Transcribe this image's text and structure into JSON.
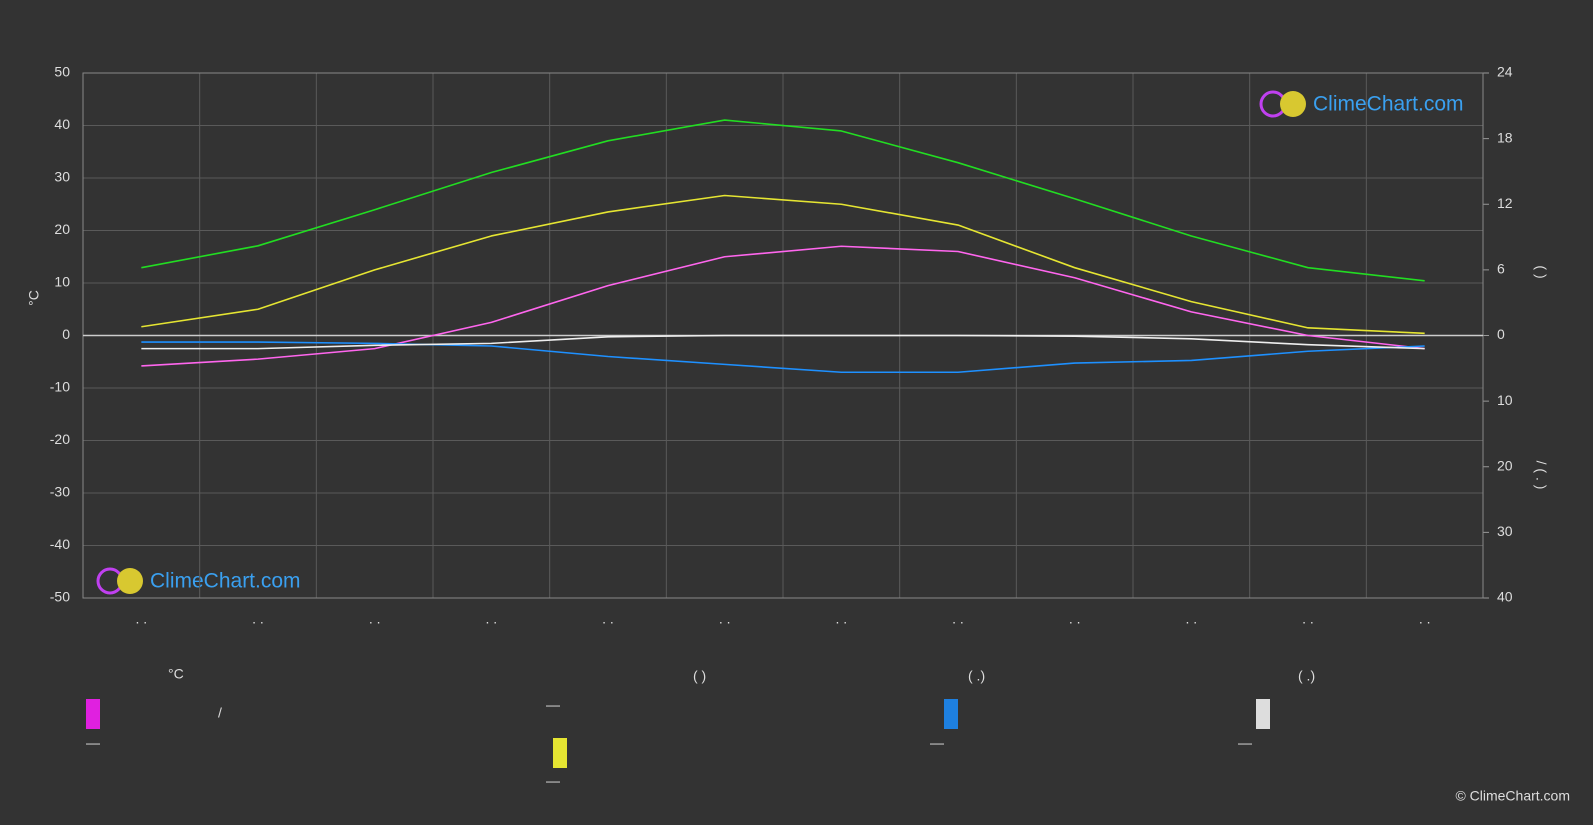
{
  "chart_data": {
    "type": "line",
    "categories": [
      ". .",
      ". .",
      ". .",
      ". .",
      ". .",
      ". .",
      ". .",
      ". .",
      ". .",
      ". .",
      ". .",
      ". ."
    ],
    "ylabel": "°C",
    "y2label": "(     )",
    "y3label": "/   (  .  )",
    "ylim": [
      -50,
      50
    ],
    "yticks": [
      -50,
      -40,
      -30,
      -20,
      -10,
      0,
      10,
      20,
      30,
      40,
      50
    ],
    "y2lim": [
      0,
      24
    ],
    "y2ticks": [
      0,
      6,
      12,
      18,
      24
    ],
    "y3lim": [
      0,
      40
    ],
    "y3ticks": [
      10,
      20,
      30,
      40
    ],
    "grid": true,
    "series": [
      {
        "name": "—",
        "color": "#22dd22",
        "axis": "y2",
        "values": [
          6.2,
          8.2,
          11.5,
          14.9,
          17.8,
          19.7,
          18.7,
          15.8,
          12.5,
          9.1,
          6.2,
          5.0
        ]
      },
      {
        "name": "—",
        "color": "#e5e532",
        "axis": "y2",
        "values": [
          0.8,
          2.4,
          6.0,
          9.1,
          11.3,
          12.8,
          12.0,
          10.1,
          6.2,
          3.1,
          0.7,
          0.2
        ]
      },
      {
        "name": "—",
        "color": "#ff66ee",
        "axis": "y",
        "values": [
          -5.8,
          -4.5,
          -2.5,
          2.5,
          9.5,
          15.0,
          17.0,
          16.0,
          11.0,
          4.5,
          0.0,
          -2.5
        ]
      },
      {
        "name": "—",
        "color": "#1e90ff",
        "axis": "y3",
        "values": [
          1.0,
          1.0,
          1.2,
          1.6,
          3.2,
          4.4,
          5.6,
          5.6,
          4.2,
          3.8,
          2.4,
          1.6
        ]
      },
      {
        "name": "—",
        "color": "#eeeeee",
        "axis": "y3",
        "values": [
          2.0,
          2.0,
          1.5,
          1.2,
          0.2,
          0.0,
          0.0,
          0.0,
          0.1,
          0.5,
          1.4,
          2.0
        ]
      }
    ],
    "legend_headers": [
      "°C",
      "(          )",
      "(   .)",
      "(   .)"
    ],
    "legend_note": "/",
    "watermark": "ClimeChart.com",
    "copyright": "© ClimeChart.com"
  }
}
